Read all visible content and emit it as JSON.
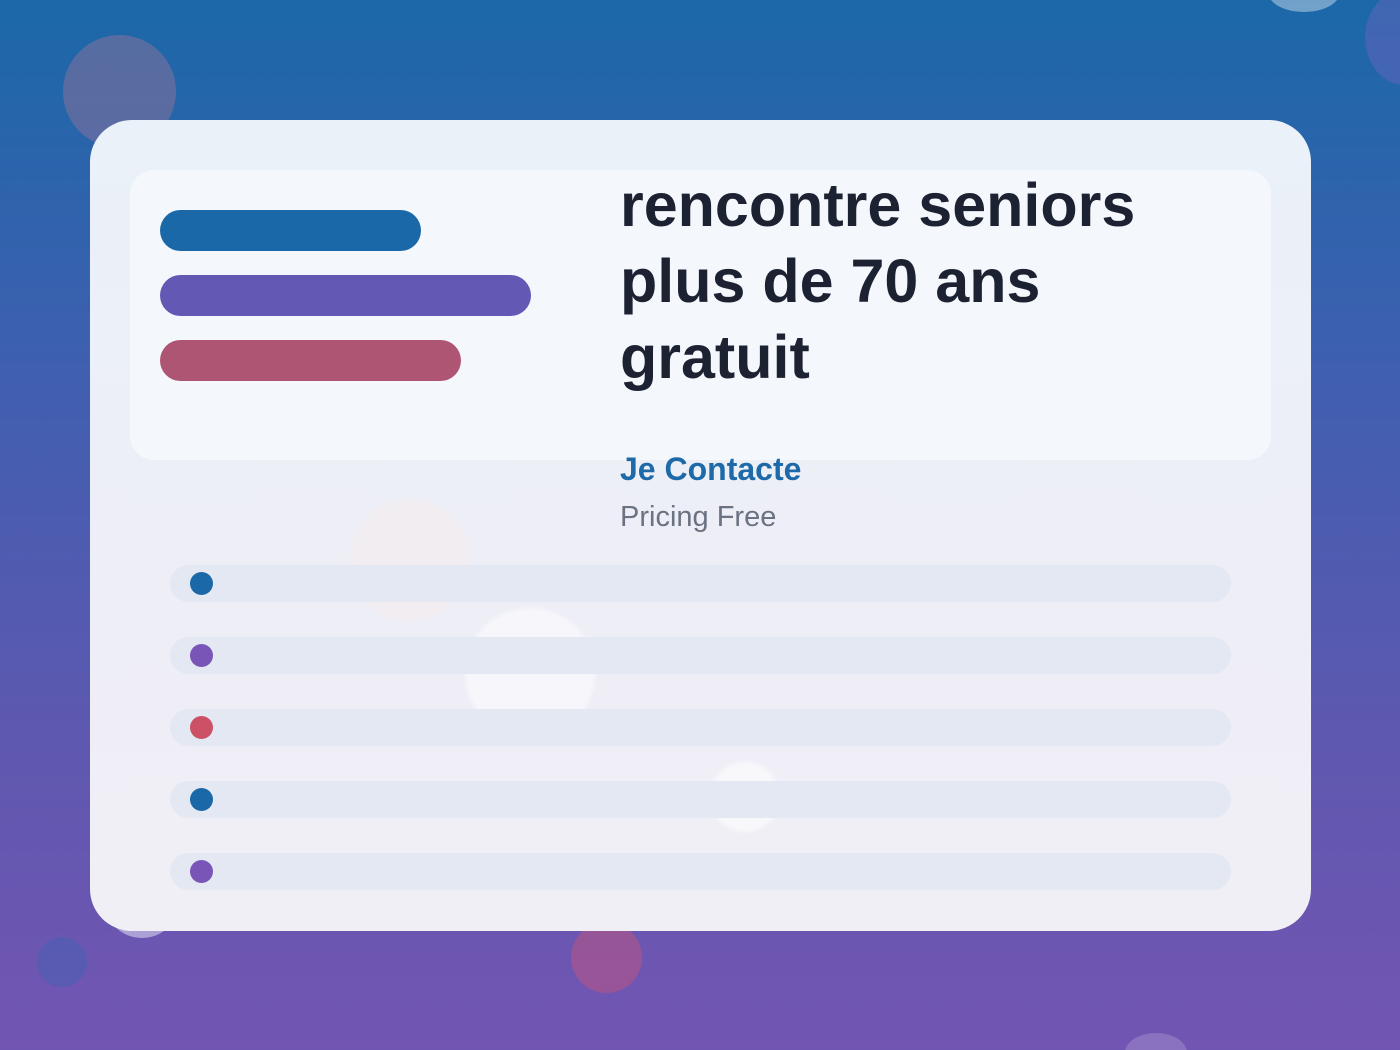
{
  "hero": {
    "title": "rencontre seniors plus de 70 ans gratuit",
    "cta_label": "Je Contacte",
    "pricing_text": "Pricing Free"
  },
  "accent_bars": [
    {
      "color": "#1b68a8"
    },
    {
      "color": "#6358b4"
    },
    {
      "color": "#ad5573"
    }
  ],
  "list_items": [
    {
      "dot_color": "#1b68a8"
    },
    {
      "dot_color": "#7a55b8"
    },
    {
      "dot_color": "#cc5066"
    },
    {
      "dot_color": "#1b68a8"
    },
    {
      "dot_color": "#7a55b8"
    }
  ],
  "colors": {
    "background_top": "#1b68a8",
    "background_bottom": "#7255b2",
    "title": "#1d2233",
    "cta": "#1e6aa9",
    "pricing": "#6b7282"
  }
}
